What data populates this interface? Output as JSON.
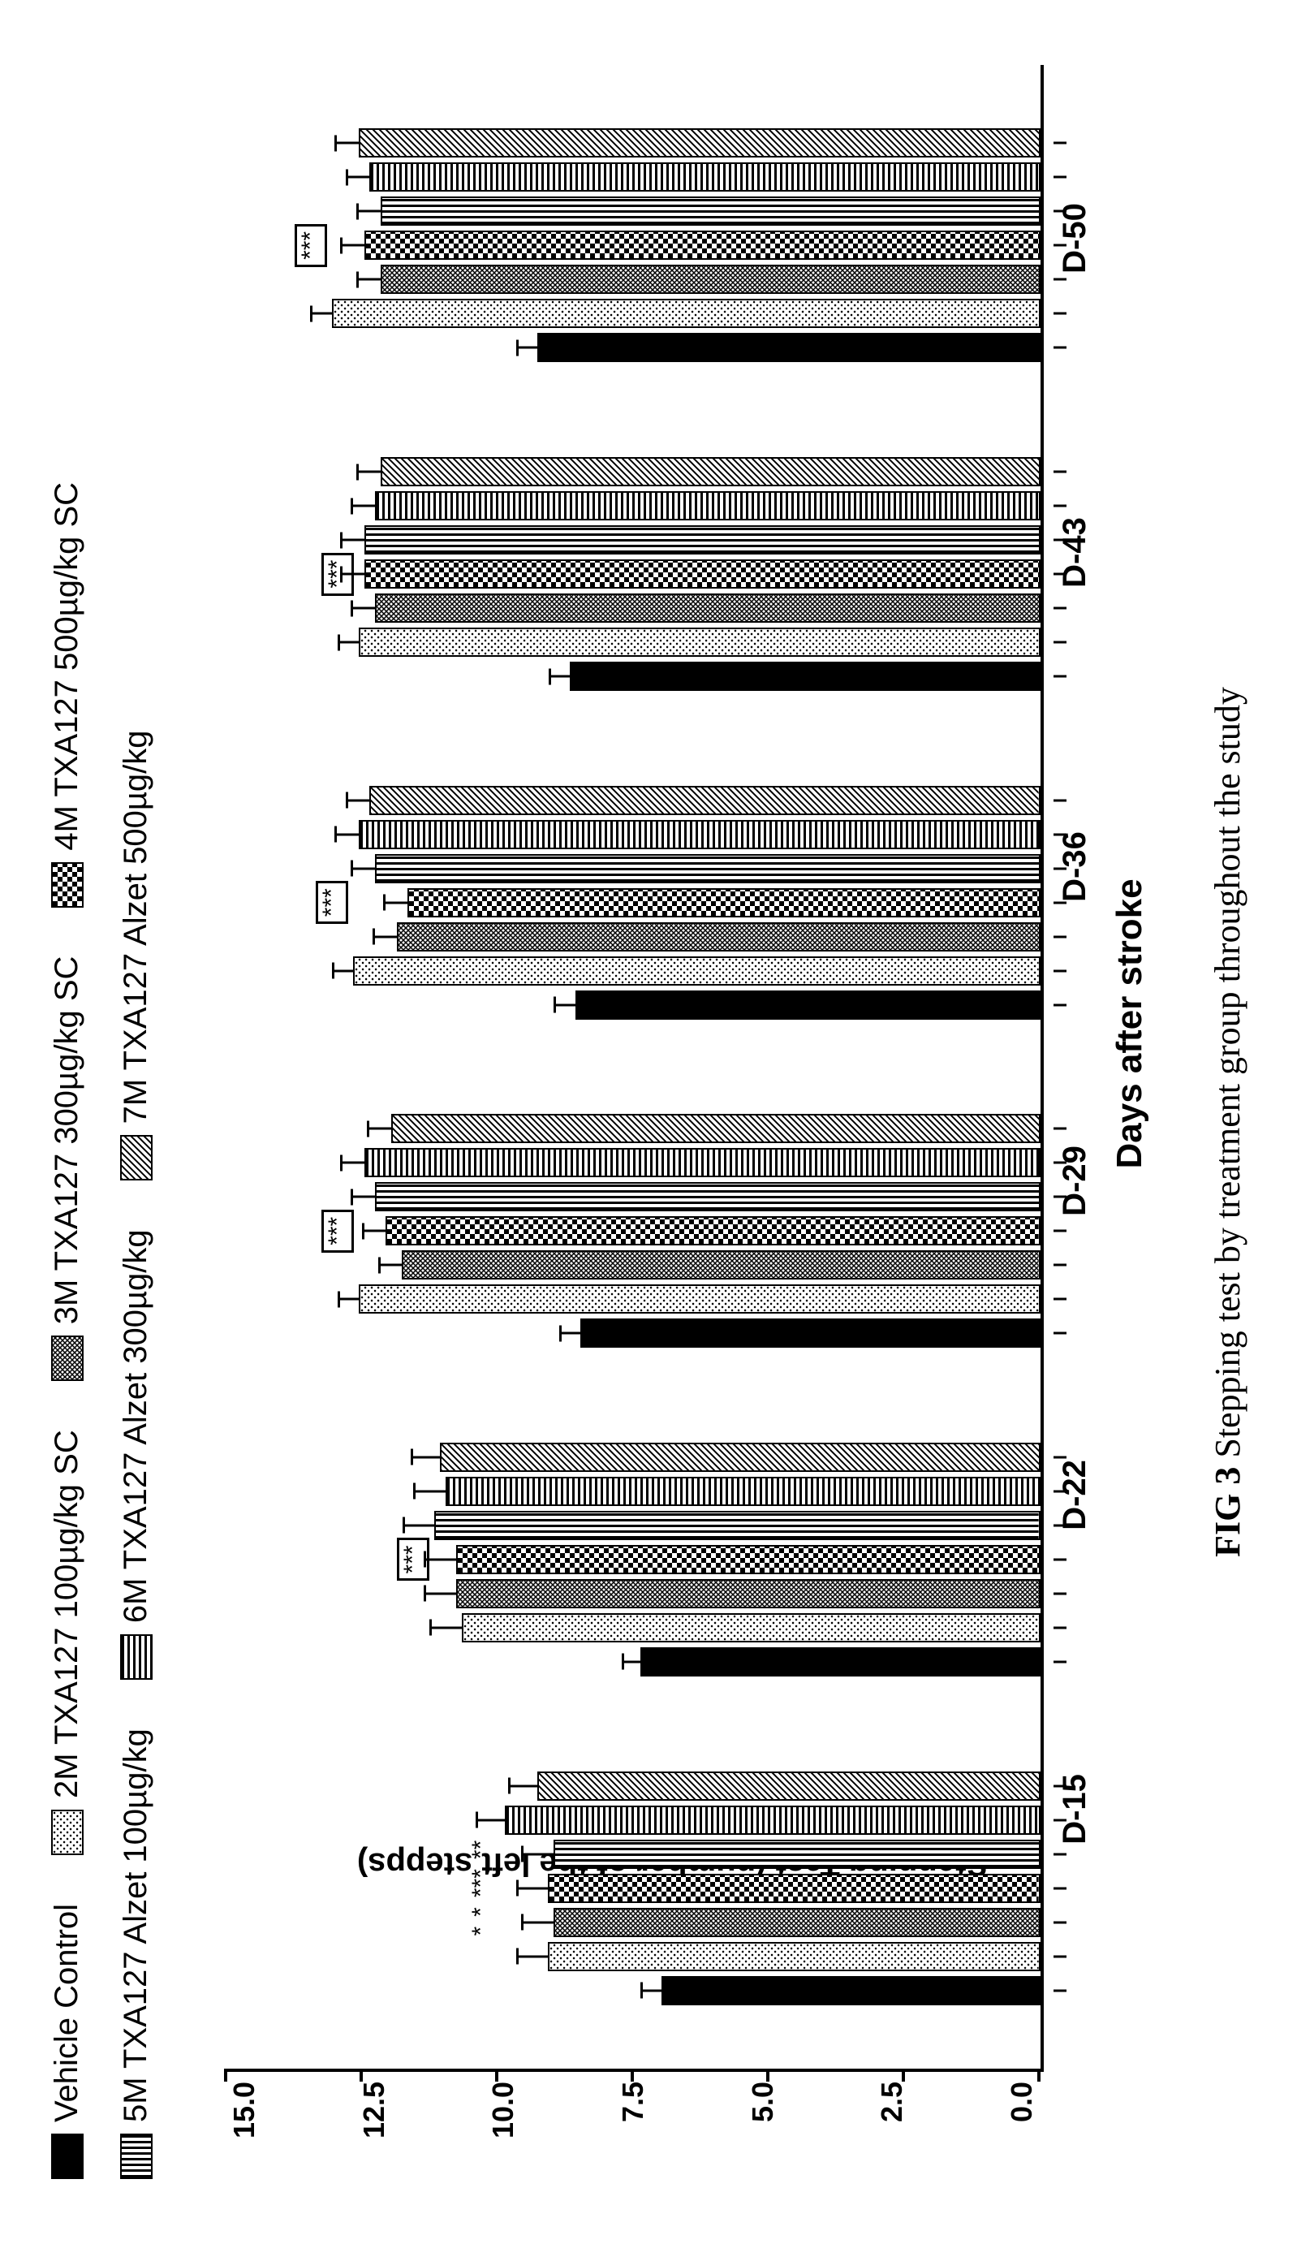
{
  "figure": {
    "caption_prefix": "FIG 3",
    "caption_text": " Stepping test by treatment group throughout the study",
    "y_label": "Stepping Test (number of the left stepps)",
    "x_label": "Days after stroke",
    "ylim": [
      0,
      15
    ],
    "ytick_step": 2.5,
    "yticks": [
      "0.0",
      "2.5",
      "5.0",
      "7.5",
      "10.0",
      "12.5",
      "15.0"
    ],
    "categories": [
      "D-15",
      "D-22",
      "D-29",
      "D-36",
      "D-43",
      "D-50"
    ],
    "bar_border_color": "#000000",
    "background_color": "#ffffff",
    "series": [
      {
        "key": "s1",
        "label": "Vehicle Control",
        "pattern": "solid-black"
      },
      {
        "key": "s2",
        "label": "2M TXA127 100µg/kg SC",
        "pattern": "dots"
      },
      {
        "key": "s3",
        "label": "3M TXA127 300µg/kg SC",
        "pattern": "crosshatch-dense"
      },
      {
        "key": "s4",
        "label": "4M TXA127 500µg/kg SC",
        "pattern": "checker"
      },
      {
        "key": "s5",
        "label": "5M TXA127 Alzet 100µg/kg",
        "pattern": "vstripes"
      },
      {
        "key": "s6",
        "label": "6M TXA127 Alzet 300µg/kg",
        "pattern": "hstripes"
      },
      {
        "key": "s7",
        "label": "7M TXA127 Alzet 500µg/kg",
        "pattern": "diag"
      }
    ],
    "values": {
      "s1": [
        7.0,
        7.4,
        8.5,
        8.6,
        8.7,
        9.3
      ],
      "s2": [
        9.1,
        10.7,
        12.6,
        12.7,
        12.6,
        13.1
      ],
      "s3": [
        9.0,
        10.8,
        11.8,
        11.9,
        12.3,
        12.2
      ],
      "s4": [
        9.1,
        10.8,
        12.1,
        11.7,
        12.5,
        12.5
      ],
      "s5": [
        9.0,
        11.2,
        12.3,
        12.3,
        12.5,
        12.2
      ],
      "s6": [
        9.9,
        11.0,
        12.5,
        12.6,
        12.3,
        12.4
      ],
      "s7": [
        9.3,
        11.1,
        12.0,
        12.4,
        12.2,
        12.6
      ]
    },
    "errors": {
      "s1": [
        0.35,
        0.3,
        0.35,
        0.35,
        0.35,
        0.35
      ],
      "s2": [
        0.55,
        0.55,
        0.35,
        0.35,
        0.35,
        0.35
      ],
      "s3": [
        0.55,
        0.55,
        0.4,
        0.4,
        0.4,
        0.4
      ],
      "s4": [
        0.55,
        0.55,
        0.4,
        0.4,
        0.4,
        0.4
      ],
      "s5": [
        0.55,
        0.55,
        0.4,
        0.4,
        0.4,
        0.4
      ],
      "s6": [
        0.5,
        0.55,
        0.4,
        0.4,
        0.4,
        0.4
      ],
      "s7": [
        0.5,
        0.5,
        0.4,
        0.4,
        0.4,
        0.4
      ]
    },
    "significance": [
      {
        "annots": [
          {
            "text": "*",
            "boxed": false
          },
          {
            "text": "*",
            "boxed": false
          },
          {
            "text": "***",
            "boxed": false
          },
          {
            "text": "**",
            "boxed": false
          }
        ]
      },
      {
        "annots": [
          {
            "text": "***",
            "boxed": true
          }
        ]
      },
      {
        "annots": [
          {
            "text": "***",
            "boxed": true
          }
        ]
      },
      {
        "annots": [
          {
            "text": "***",
            "boxed": true
          }
        ]
      },
      {
        "annots": [
          {
            "text": "***",
            "boxed": true
          }
        ]
      },
      {
        "annots": [
          {
            "text": "***",
            "boxed": true
          }
        ]
      }
    ]
  }
}
